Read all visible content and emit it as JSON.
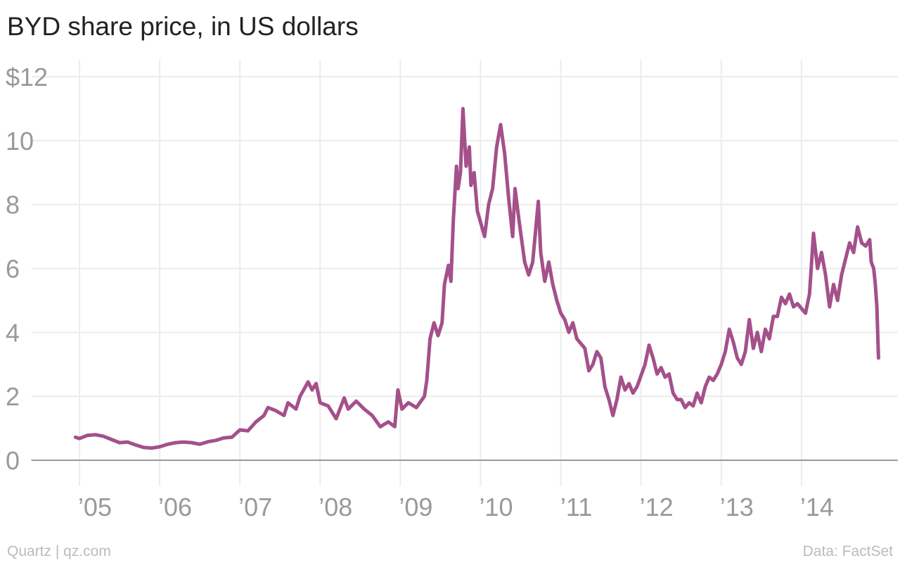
{
  "chart_data": {
    "type": "line",
    "title": "BYD share price, in US dollars",
    "source": "Data: FactSet",
    "credit": "Quartz | qz.com",
    "grid": true,
    "xlim": [
      2004.4,
      2015.2
    ],
    "ylim": [
      0,
      12
    ],
    "xticks": [
      {
        "value": 2005,
        "label": "’05"
      },
      {
        "value": 2006,
        "label": "’06"
      },
      {
        "value": 2007,
        "label": "’07"
      },
      {
        "value": 2008,
        "label": "’08"
      },
      {
        "value": 2009,
        "label": "’09"
      },
      {
        "value": 2010,
        "label": "’10"
      },
      {
        "value": 2011,
        "label": "’11"
      },
      {
        "value": 2012,
        "label": "’12"
      },
      {
        "value": 2013,
        "label": "’13"
      },
      {
        "value": 2014,
        "label": "’14"
      }
    ],
    "yticks": [
      0,
      2,
      4,
      6,
      8,
      10,
      {
        "value": 12,
        "label": "$12"
      }
    ],
    "x": [
      2004.95,
      2005.0,
      2005.1,
      2005.2,
      2005.3,
      2005.4,
      2005.5,
      2005.6,
      2005.7,
      2005.8,
      2005.9,
      2006.0,
      2006.1,
      2006.2,
      2006.3,
      2006.4,
      2006.5,
      2006.6,
      2006.7,
      2006.8,
      2006.9,
      2007.0,
      2007.1,
      2007.2,
      2007.3,
      2007.35,
      2007.45,
      2007.55,
      2007.6,
      2007.7,
      2007.75,
      2007.85,
      2007.9,
      2007.95,
      2008.0,
      2008.1,
      2008.2,
      2008.3,
      2008.35,
      2008.45,
      2008.55,
      2008.65,
      2008.75,
      2008.85,
      2008.93,
      2008.97,
      2009.02,
      2009.1,
      2009.2,
      2009.3,
      2009.33,
      2009.37,
      2009.42,
      2009.47,
      2009.52,
      2009.55,
      2009.6,
      2009.63,
      2009.66,
      2009.7,
      2009.72,
      2009.75,
      2009.78,
      2009.82,
      2009.86,
      2009.88,
      2009.92,
      2009.96,
      2010.05,
      2010.1,
      2010.15,
      2010.2,
      2010.25,
      2010.3,
      2010.35,
      2010.4,
      2010.43,
      2010.48,
      2010.55,
      2010.6,
      2010.65,
      2010.72,
      2010.75,
      2010.8,
      2010.85,
      2010.9,
      2010.95,
      2011.0,
      2011.05,
      2011.1,
      2011.15,
      2011.2,
      2011.3,
      2011.35,
      2011.4,
      2011.45,
      2011.5,
      2011.55,
      2011.6,
      2011.65,
      2011.7,
      2011.75,
      2011.8,
      2011.85,
      2011.9,
      2011.95,
      2012.05,
      2012.1,
      2012.15,
      2012.2,
      2012.25,
      2012.3,
      2012.35,
      2012.4,
      2012.45,
      2012.5,
      2012.55,
      2012.6,
      2012.65,
      2012.7,
      2012.75,
      2012.8,
      2012.85,
      2012.9,
      2012.95,
      2013.0,
      2013.05,
      2013.1,
      2013.15,
      2013.2,
      2013.25,
      2013.3,
      2013.35,
      2013.4,
      2013.45,
      2013.5,
      2013.55,
      2013.6,
      2013.65,
      2013.7,
      2013.75,
      2013.8,
      2013.85,
      2013.9,
      2013.95,
      2014.05,
      2014.1,
      2014.15,
      2014.2,
      2014.25,
      2014.3,
      2014.35,
      2014.4,
      2014.45,
      2014.5,
      2014.55,
      2014.6,
      2014.65,
      2014.7,
      2014.75,
      2014.8,
      2014.85,
      2014.87,
      2014.9,
      2014.92,
      2014.94,
      2014.96
    ],
    "series": [
      {
        "color": "#a4508b",
        "values": [
          0.72,
          0.68,
          0.78,
          0.8,
          0.75,
          0.65,
          0.55,
          0.57,
          0.48,
          0.4,
          0.38,
          0.42,
          0.5,
          0.55,
          0.57,
          0.55,
          0.5,
          0.58,
          0.62,
          0.7,
          0.72,
          0.95,
          0.92,
          1.2,
          1.4,
          1.65,
          1.55,
          1.4,
          1.8,
          1.6,
          2.0,
          2.45,
          2.2,
          2.4,
          1.8,
          1.7,
          1.3,
          1.95,
          1.6,
          1.85,
          1.6,
          1.4,
          1.05,
          1.2,
          1.05,
          2.2,
          1.6,
          1.8,
          1.65,
          2.0,
          2.5,
          3.8,
          4.3,
          3.9,
          4.3,
          5.5,
          6.1,
          5.6,
          7.5,
          9.2,
          8.5,
          9.0,
          11.0,
          9.2,
          9.8,
          8.6,
          9.0,
          7.8,
          7.0,
          8.0,
          8.5,
          9.8,
          10.5,
          9.6,
          8.2,
          7.0,
          8.5,
          7.5,
          6.2,
          5.8,
          6.2,
          8.1,
          6.5,
          5.6,
          6.2,
          5.5,
          5.0,
          4.6,
          4.4,
          4.0,
          4.3,
          3.8,
          3.5,
          2.8,
          3.0,
          3.4,
          3.2,
          2.3,
          1.9,
          1.4,
          1.9,
          2.6,
          2.2,
          2.4,
          2.1,
          2.3,
          3.0,
          3.6,
          3.2,
          2.7,
          2.9,
          2.6,
          2.7,
          2.1,
          1.9,
          1.9,
          1.65,
          1.8,
          1.7,
          2.1,
          1.8,
          2.3,
          2.6,
          2.5,
          2.7,
          3.0,
          3.4,
          4.1,
          3.7,
          3.2,
          3.0,
          3.4,
          4.4,
          3.5,
          4.0,
          3.4,
          4.1,
          3.8,
          4.5,
          4.5,
          5.1,
          4.9,
          5.2,
          4.8,
          4.9,
          4.6,
          5.2,
          7.1,
          6.0,
          6.5,
          5.8,
          4.8,
          5.5,
          5.0,
          5.8,
          6.3,
          6.8,
          6.5,
          7.3,
          6.8,
          6.7,
          6.9,
          6.2,
          6.0,
          5.5,
          4.8,
          3.2
        ]
      }
    ]
  }
}
